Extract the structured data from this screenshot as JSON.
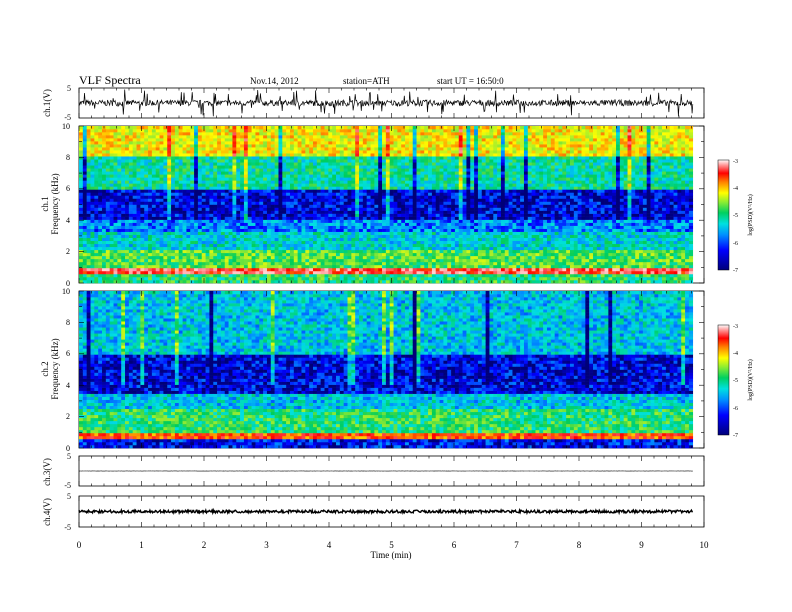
{
  "header": {
    "title": "VLF  Spectra",
    "date": "Nov.14, 2012",
    "station": "station=ATH",
    "start": "start  UT  =    16:50:0"
  },
  "chart_data": [
    {
      "type": "line",
      "channel": "ch.1",
      "ylabel": "ch.1(V)",
      "ylim": [
        -5,
        5
      ],
      "yticks": [
        "5",
        "-5"
      ],
      "baseline": 0.0,
      "jitter": 1.0
    },
    {
      "type": "heatmap",
      "channel": "ch.1",
      "ylabel": "Frequency  (kHz)",
      "ylabel_channel": "ch.1",
      "ylim": [
        0,
        10
      ],
      "yticks": [
        "0",
        "2",
        "4",
        "6",
        "8",
        "10"
      ],
      "xlim": [
        0,
        9.82
      ],
      "bands": [
        {
          "from": 0.0,
          "to": 0.5,
          "level": -5.4
        },
        {
          "from": 0.5,
          "to": 1.0,
          "level": -3.6
        },
        {
          "from": 1.0,
          "to": 2.2,
          "level": -5.2
        },
        {
          "from": 2.2,
          "to": 3.2,
          "level": -5.8
        },
        {
          "from": 3.2,
          "to": 4.0,
          "level": -6.2
        },
        {
          "from": 4.0,
          "to": 6.0,
          "level": -6.7
        },
        {
          "from": 6.0,
          "to": 8.0,
          "level": -5.6
        },
        {
          "from": 8.0,
          "to": 10.0,
          "level": -4.6
        }
      ],
      "colorbar": {
        "label": "log(PSD)(V²/Hz)",
        "range": [
          -7,
          -3
        ],
        "ticks": [
          "-3",
          "-4",
          "-5",
          "-6",
          "-7"
        ]
      }
    },
    {
      "type": "heatmap",
      "channel": "ch.2",
      "ylabel": "Frequency  (kHz)",
      "ylabel_channel": "ch.2",
      "ylim": [
        0,
        10
      ],
      "yticks": [
        "0",
        "2",
        "4",
        "6",
        "8",
        "10"
      ],
      "xlim": [
        0,
        9.82
      ],
      "bands": [
        {
          "from": 0.0,
          "to": 0.5,
          "level": -6.6
        },
        {
          "from": 0.5,
          "to": 1.0,
          "level": -4.0
        },
        {
          "from": 1.0,
          "to": 2.5,
          "level": -5.4
        },
        {
          "from": 2.5,
          "to": 3.5,
          "level": -5.9
        },
        {
          "from": 3.5,
          "to": 6.0,
          "level": -6.7
        },
        {
          "from": 6.0,
          "to": 10.0,
          "level": -5.9
        }
      ],
      "colorbar": {
        "label": "log(PSD)(V²/Hz)",
        "range": [
          -7,
          -3
        ],
        "ticks": [
          "-3",
          "-4",
          "-5",
          "-6",
          "-7"
        ]
      }
    },
    {
      "type": "line",
      "channel": "ch.3",
      "ylabel": "ch.3(V)",
      "ylim": [
        -5,
        5
      ],
      "yticks": [
        "5",
        "-5"
      ],
      "baseline": 0.0,
      "jitter": 0.05
    },
    {
      "type": "line",
      "channel": "ch.4",
      "ylabel": "ch.4(V)",
      "ylim": [
        -5,
        5
      ],
      "yticks": [
        "5",
        "-5"
      ],
      "baseline": 0.0,
      "jitter": 0.45
    }
  ],
  "xaxis": {
    "label": "Time  (min)",
    "range": [
      0,
      10
    ],
    "ticks": [
      "0",
      "1",
      "2",
      "3",
      "4",
      "5",
      "6",
      "7",
      "8",
      "9",
      "10"
    ]
  }
}
